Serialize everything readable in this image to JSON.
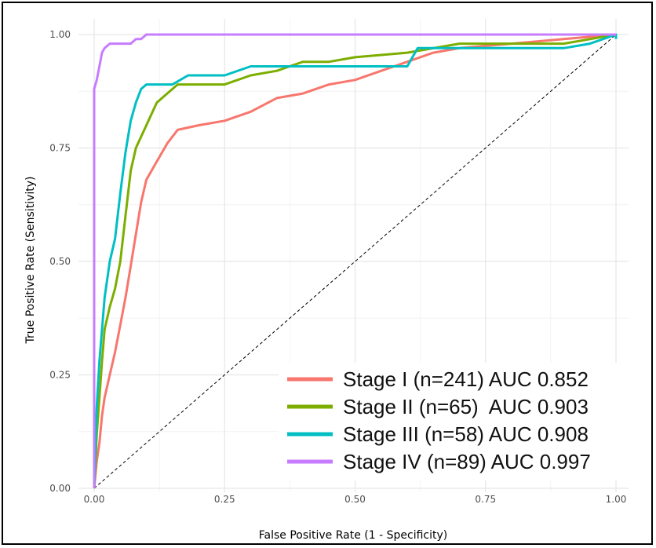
{
  "chart_data": {
    "type": "line",
    "title": "",
    "xlabel": "False Positive Rate (1 - Specificity)",
    "ylabel": "True Positive Rate (Sensitivity)",
    "xlim": [
      0,
      1
    ],
    "ylim": [
      0,
      1
    ],
    "x_ticks": [
      "0.00",
      "0.25",
      "0.50",
      "0.75",
      "1.00"
    ],
    "y_ticks": [
      "0.00",
      "0.25",
      "0.50",
      "0.75",
      "1.00"
    ],
    "grid": true,
    "legend_position": "bottom-right",
    "reference_line": {
      "x": [
        0,
        1
      ],
      "y": [
        0,
        1
      ],
      "style": "dashed",
      "color": "#000000"
    },
    "series": [
      {
        "name": "Stage I (n=241) AUC 0.852",
        "color": "#F8766D",
        "points": [
          [
            0,
            0
          ],
          [
            0.005,
            0.06
          ],
          [
            0.01,
            0.1
          ],
          [
            0.015,
            0.16
          ],
          [
            0.02,
            0.2
          ],
          [
            0.03,
            0.25
          ],
          [
            0.04,
            0.3
          ],
          [
            0.05,
            0.36
          ],
          [
            0.06,
            0.42
          ],
          [
            0.07,
            0.49
          ],
          [
            0.08,
            0.56
          ],
          [
            0.09,
            0.63
          ],
          [
            0.1,
            0.68
          ],
          [
            0.12,
            0.72
          ],
          [
            0.14,
            0.76
          ],
          [
            0.16,
            0.79
          ],
          [
            0.2,
            0.8
          ],
          [
            0.25,
            0.81
          ],
          [
            0.3,
            0.83
          ],
          [
            0.35,
            0.86
          ],
          [
            0.4,
            0.87
          ],
          [
            0.45,
            0.89
          ],
          [
            0.5,
            0.9
          ],
          [
            0.55,
            0.92
          ],
          [
            0.6,
            0.94
          ],
          [
            0.65,
            0.96
          ],
          [
            0.7,
            0.97
          ],
          [
            0.8,
            0.98
          ],
          [
            0.9,
            0.99
          ],
          [
            1,
            1
          ]
        ]
      },
      {
        "name": "Stage II (n=65)  AUC 0.903",
        "color": "#7CAE00",
        "points": [
          [
            0,
            0
          ],
          [
            0.005,
            0.12
          ],
          [
            0.01,
            0.2
          ],
          [
            0.015,
            0.28
          ],
          [
            0.02,
            0.35
          ],
          [
            0.03,
            0.4
          ],
          [
            0.04,
            0.44
          ],
          [
            0.05,
            0.5
          ],
          [
            0.06,
            0.6
          ],
          [
            0.07,
            0.7
          ],
          [
            0.08,
            0.75
          ],
          [
            0.1,
            0.8
          ],
          [
            0.12,
            0.85
          ],
          [
            0.14,
            0.87
          ],
          [
            0.16,
            0.89
          ],
          [
            0.2,
            0.89
          ],
          [
            0.25,
            0.89
          ],
          [
            0.3,
            0.91
          ],
          [
            0.35,
            0.92
          ],
          [
            0.4,
            0.94
          ],
          [
            0.45,
            0.94
          ],
          [
            0.5,
            0.95
          ],
          [
            0.6,
            0.96
          ],
          [
            0.7,
            0.98
          ],
          [
            0.8,
            0.98
          ],
          [
            0.9,
            0.98
          ],
          [
            0.95,
            0.99
          ],
          [
            1,
            1
          ]
        ]
      },
      {
        "name": "Stage III (n=58) AUC 0.908",
        "color": "#00BFC4",
        "points": [
          [
            0,
            0
          ],
          [
            0.005,
            0.18
          ],
          [
            0.01,
            0.28
          ],
          [
            0.015,
            0.35
          ],
          [
            0.02,
            0.42
          ],
          [
            0.03,
            0.5
          ],
          [
            0.04,
            0.55
          ],
          [
            0.05,
            0.65
          ],
          [
            0.06,
            0.74
          ],
          [
            0.07,
            0.81
          ],
          [
            0.08,
            0.85
          ],
          [
            0.09,
            0.88
          ],
          [
            0.1,
            0.89
          ],
          [
            0.12,
            0.89
          ],
          [
            0.15,
            0.89
          ],
          [
            0.18,
            0.91
          ],
          [
            0.2,
            0.91
          ],
          [
            0.25,
            0.91
          ],
          [
            0.3,
            0.93
          ],
          [
            0.35,
            0.93
          ],
          [
            0.4,
            0.93
          ],
          [
            0.5,
            0.93
          ],
          [
            0.6,
            0.93
          ],
          [
            0.62,
            0.97
          ],
          [
            0.7,
            0.97
          ],
          [
            0.8,
            0.97
          ],
          [
            0.9,
            0.97
          ],
          [
            0.95,
            0.98
          ],
          [
            1,
            1
          ],
          [
            1,
            0.99
          ]
        ]
      },
      {
        "name": "Stage IV (n=89) AUC 0.997",
        "color": "#C77CFF",
        "points": [
          [
            0,
            0
          ],
          [
            0,
            0.88
          ],
          [
            0.005,
            0.9
          ],
          [
            0.01,
            0.93
          ],
          [
            0.015,
            0.96
          ],
          [
            0.02,
            0.97
          ],
          [
            0.03,
            0.98
          ],
          [
            0.05,
            0.98
          ],
          [
            0.07,
            0.98
          ],
          [
            0.08,
            0.99
          ],
          [
            0.09,
            0.99
          ],
          [
            0.1,
            1
          ],
          [
            0.2,
            1
          ],
          [
            0.5,
            1
          ],
          [
            0.8,
            1
          ],
          [
            1,
            1
          ]
        ]
      }
    ]
  }
}
